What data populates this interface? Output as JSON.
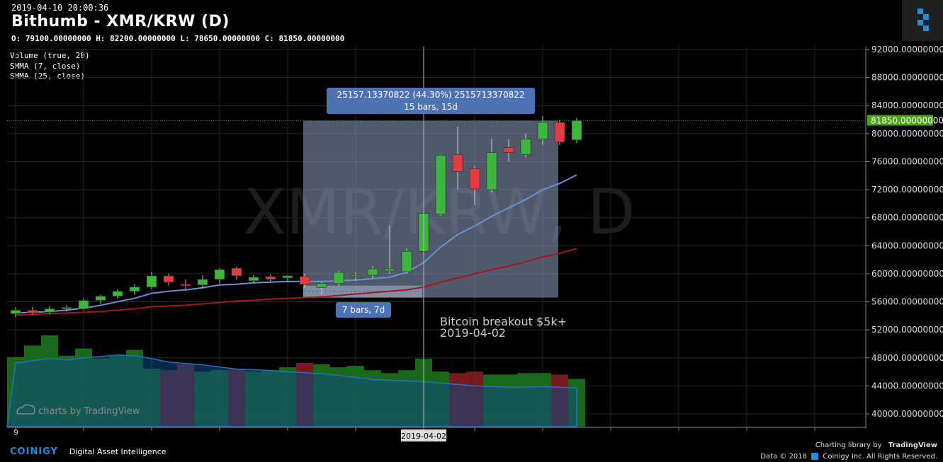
{
  "header": {
    "timestamp": "2019-04-10 20:00:36",
    "title": "Bithumb - XMR/KRW (D)",
    "ohlc": "O: 79100.00000000 H: 82200.00000000 L: 78650.00000000 C: 81850.00000000",
    "indicators": [
      "Volume (true, 20)",
      "SMMA (7, close)",
      "SMMA (25, close)"
    ]
  },
  "chart_data": {
    "type": "candlestick",
    "watermark": "XMR/KRW, D",
    "ylim": [
      38000,
      93000
    ],
    "y_ticks": [
      "92000.00000000",
      "88000.00000000",
      "84000.00000000",
      "80000.00000000",
      "76000.00000000",
      "72000.00000000",
      "68000.00000000",
      "64000.00000000",
      "60000.00000000",
      "56000.00000000",
      "52000.00000000",
      "48000.00000000",
      "44000.00000000",
      "40000.00000000"
    ],
    "last_price_label": "81850.00000000",
    "x_tick_first": "9",
    "crosshair_date": "2019-04-02",
    "candles": [
      {
        "o": 54300,
        "h": 55200,
        "l": 53800,
        "c": 54800
      },
      {
        "o": 54800,
        "h": 55300,
        "l": 54200,
        "c": 54400
      },
      {
        "o": 54500,
        "h": 55400,
        "l": 54200,
        "c": 55000
      },
      {
        "o": 55000,
        "h": 55500,
        "l": 54600,
        "c": 55200
      },
      {
        "o": 55000,
        "h": 56500,
        "l": 54800,
        "c": 56200
      },
      {
        "o": 56200,
        "h": 57000,
        "l": 55700,
        "c": 56800
      },
      {
        "o": 56800,
        "h": 57800,
        "l": 56500,
        "c": 57500
      },
      {
        "o": 57500,
        "h": 58500,
        "l": 57000,
        "c": 58100
      },
      {
        "o": 58100,
        "h": 60300,
        "l": 57800,
        "c": 59700
      },
      {
        "o": 59700,
        "h": 60000,
        "l": 58300,
        "c": 58800
      },
      {
        "o": 58500,
        "h": 59200,
        "l": 57800,
        "c": 58400
      },
      {
        "o": 58400,
        "h": 59800,
        "l": 58000,
        "c": 59200
      },
      {
        "o": 59200,
        "h": 60800,
        "l": 58600,
        "c": 60600
      },
      {
        "o": 60800,
        "h": 61000,
        "l": 59200,
        "c": 59700
      },
      {
        "o": 59000,
        "h": 59800,
        "l": 58700,
        "c": 59500
      },
      {
        "o": 59600,
        "h": 59900,
        "l": 58900,
        "c": 59200
      },
      {
        "o": 59400,
        "h": 59800,
        "l": 58900,
        "c": 59700
      },
      {
        "o": 59600,
        "h": 60000,
        "l": 58000,
        "c": 58500
      },
      {
        "o": 58000,
        "h": 58800,
        "l": 57000,
        "c": 58600
      },
      {
        "o": 58600,
        "h": 60400,
        "l": 58200,
        "c": 60200
      },
      {
        "o": 59700,
        "h": 60200,
        "l": 59000,
        "c": 59800
      },
      {
        "o": 59800,
        "h": 61100,
        "l": 59400,
        "c": 60700
      },
      {
        "o": 60400,
        "h": 66900,
        "l": 60000,
        "c": 60700
      },
      {
        "o": 60300,
        "h": 63600,
        "l": 60000,
        "c": 63200
      },
      {
        "o": 63200,
        "h": 68600,
        "l": 63000,
        "c": 68600
      },
      {
        "o": 68500,
        "h": 77000,
        "l": 68300,
        "c": 76900
      },
      {
        "o": 77000,
        "h": 81000,
        "l": 72000,
        "c": 74600
      },
      {
        "o": 75000,
        "h": 75400,
        "l": 69800,
        "c": 72100
      },
      {
        "o": 72000,
        "h": 79300,
        "l": 71600,
        "c": 77300
      },
      {
        "o": 78000,
        "h": 79200,
        "l": 76000,
        "c": 77300
      },
      {
        "o": 77000,
        "h": 80000,
        "l": 76600,
        "c": 79200
      },
      {
        "o": 79200,
        "h": 82500,
        "l": 78400,
        "c": 81600
      },
      {
        "o": 81600,
        "h": 82000,
        "l": 78400,
        "c": 78800
      },
      {
        "o": 79100,
        "h": 82200,
        "l": 78650,
        "c": 81850
      }
    ],
    "volume": [
      4800,
      5600,
      6300,
      4900,
      5400,
      4700,
      4900,
      5300,
      4000,
      3900,
      4300,
      3800,
      3900,
      4000,
      3800,
      3900,
      4100,
      4400,
      4300,
      4100,
      4200,
      3900,
      3700,
      3900,
      4700,
      3800,
      3700,
      3800,
      3600,
      3600,
      3700,
      3700,
      3600,
      3300
    ],
    "volume_up": [
      true,
      true,
      true,
      true,
      true,
      true,
      true,
      true,
      true,
      false,
      false,
      true,
      true,
      false,
      true,
      true,
      true,
      false,
      true,
      true,
      true,
      true,
      true,
      true,
      true,
      true,
      false,
      false,
      true,
      true,
      true,
      true,
      false,
      true
    ],
    "volume_avg": [
      47200,
      47600,
      47900,
      47700,
      48000,
      48200,
      48400,
      48300,
      47900,
      47400,
      47200,
      47000,
      46700,
      46400,
      46300,
      46200,
      46000,
      45900,
      45700,
      45500,
      45200,
      44900,
      44800,
      44700,
      44600,
      44400,
      44200,
      44000,
      43900,
      43800,
      43800,
      43900,
      43800,
      43700
    ],
    "smma7": [
      54400,
      54500,
      54600,
      54800,
      55100,
      55500,
      56000,
      56500,
      57200,
      57500,
      57700,
      58000,
      58400,
      58500,
      58700,
      58800,
      58900,
      58900,
      58900,
      59000,
      59100,
      59300,
      59500,
      60200,
      61600,
      63800,
      65600,
      66800,
      68200,
      69400,
      70600,
      72000,
      72900,
      74100
    ],
    "smma25": [
      54100,
      54200,
      54300,
      54400,
      54500,
      54600,
      54800,
      55000,
      55300,
      55400,
      55500,
      55700,
      55900,
      56100,
      56200,
      56400,
      56500,
      56600,
      56700,
      56900,
      57100,
      57300,
      57500,
      57700,
      58100,
      58800,
      59400,
      60000,
      60600,
      61100,
      61700,
      62400,
      62900,
      63600
    ],
    "measure_box": {
      "label_top": "25157.13370822 (44.30%) 2515713370822",
      "label_top2": "15 bars, 15d",
      "label_bottom": "7 bars, 7d"
    },
    "annotation": {
      "line1": "Bitcoin breakout $5k+",
      "line2": "2019-04-02"
    }
  },
  "footer": {
    "brand": "COINIGY",
    "tagline": "Digital Asset Intelligence",
    "tv_watermark": "charts by TradingView",
    "charting_by": "Charting library by",
    "tradingview": "TradingView",
    "copyright_data": "Data © 2018",
    "copyright_company": "Coinigy Inc. All Rights Reserved."
  },
  "colors": {
    "up": "#2fa82f",
    "down": "#e0313a",
    "smma7": "#6b8fd4",
    "smma25": "#a4151c",
    "volume_avg": "#1a5fa8",
    "highlight": "#8495b0",
    "axis_label_bg": "#4ba318"
  }
}
